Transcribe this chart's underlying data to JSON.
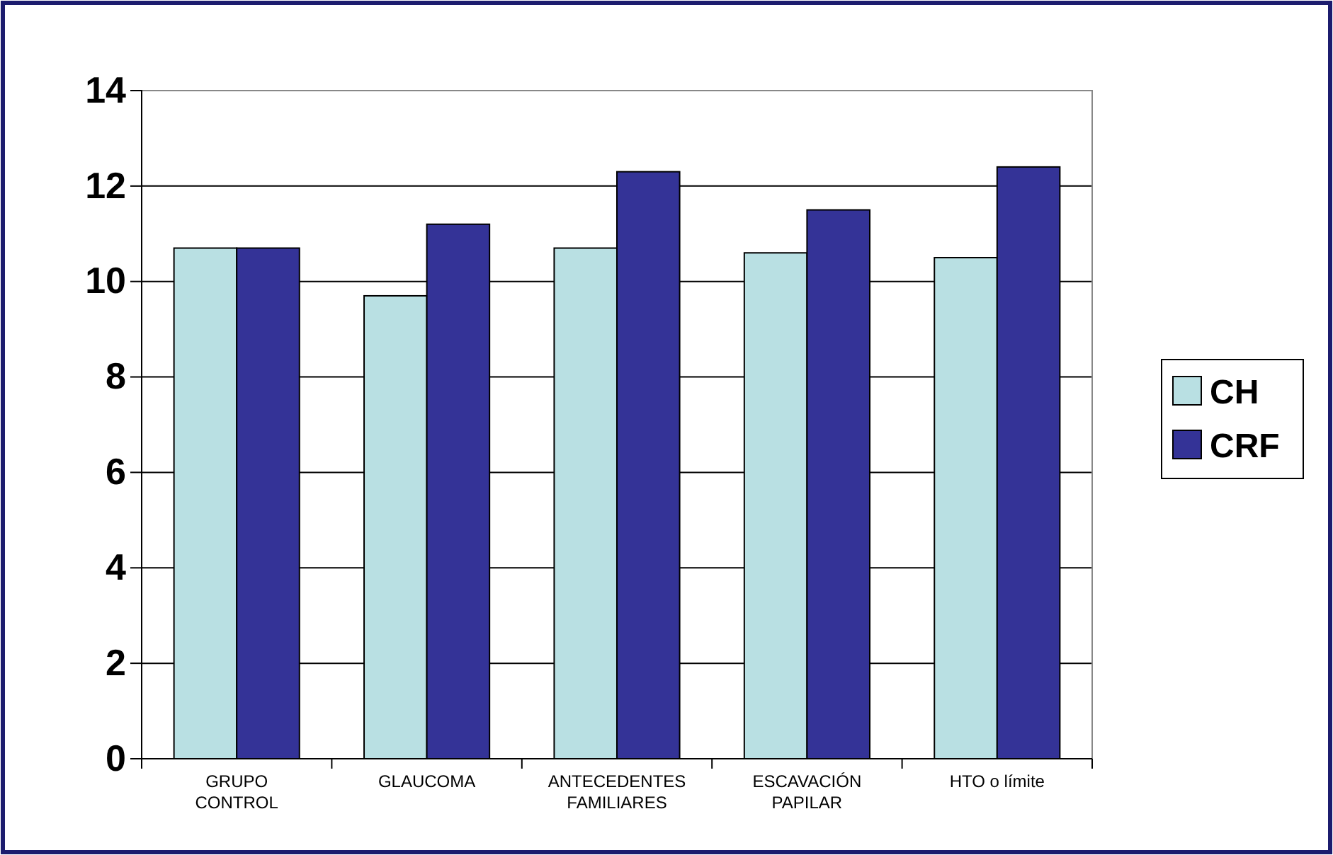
{
  "chart_data": {
    "type": "bar",
    "categories": [
      "GRUPO CONTROL",
      "GLAUCOMA",
      "ANTECEDENTES FAMILIARES",
      "ESCAVACIÓN PAPILAR",
      "HTO o límite"
    ],
    "series": [
      {
        "name": "CH",
        "color": "#b9e0e3",
        "values": [
          10.7,
          9.7,
          10.7,
          10.6,
          10.5
        ]
      },
      {
        "name": "CRF",
        "color": "#343397",
        "values": [
          10.7,
          11.2,
          12.3,
          11.5,
          12.4
        ]
      }
    ],
    "ylim": [
      0,
      14
    ],
    "yticks": [
      0,
      2,
      4,
      6,
      8,
      10,
      12,
      14
    ],
    "grid": "y",
    "legend": "right"
  }
}
